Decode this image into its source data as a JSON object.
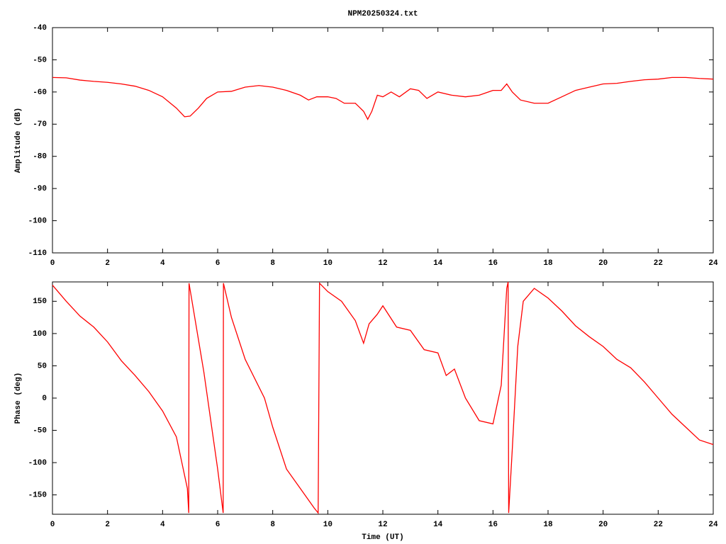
{
  "chart_data": [
    {
      "type": "line",
      "title": "NPM20250324.txt",
      "ylabel": "Amplitude (dB)",
      "color": "#ff0000",
      "x": [
        0,
        0.5,
        1,
        1.5,
        2,
        2.5,
        3,
        3.5,
        4,
        4.5,
        4.8,
        5,
        5.3,
        5.6,
        6,
        6.5,
        7,
        7.5,
        8,
        8.5,
        9,
        9.3,
        9.6,
        10,
        10.3,
        10.6,
        11,
        11.3,
        11.45,
        11.6,
        11.8,
        12,
        12.3,
        12.6,
        13,
        13.3,
        13.6,
        14,
        14.5,
        15,
        15.5,
        16,
        16.3,
        16.5,
        16.7,
        17,
        17.5,
        18,
        18.5,
        19,
        19.5,
        20,
        20.5,
        21,
        21.5,
        22,
        22.5,
        23,
        23.5,
        24
      ],
      "values": [
        -55.5,
        -55.6,
        -56.3,
        -56.7,
        -57,
        -57.5,
        -58.2,
        -59.5,
        -61.5,
        -65,
        -67.7,
        -67.5,
        -65,
        -62,
        -60,
        -59.8,
        -58.5,
        -58,
        -58.5,
        -59.5,
        -61,
        -62.5,
        -61.5,
        -61.5,
        -62,
        -63.5,
        -63.5,
        -66,
        -68.5,
        -66,
        -61,
        -61.5,
        -60,
        -61.5,
        -59,
        -59.5,
        -62,
        -60,
        -61,
        -61.5,
        -61,
        -59.5,
        -59.5,
        -57.5,
        -60,
        -62.5,
        -63.5,
        -63.5,
        -61.5,
        -59.5,
        -58.5,
        -57.5,
        -57.3,
        -56.7,
        -56.2,
        -56,
        -55.5,
        -55.5,
        -55.8,
        -56
      ],
      "xlim": [
        0,
        24
      ],
      "xticks": [
        0,
        2,
        4,
        6,
        8,
        10,
        12,
        14,
        16,
        18,
        20,
        22,
        24
      ],
      "ylim": [
        -110,
        -40
      ],
      "yticks": [
        -110,
        -100,
        -90,
        -80,
        -70,
        -60,
        -50,
        -40
      ]
    },
    {
      "type": "line",
      "ylabel": "Phase (deg)",
      "xlabel": "Time (UT)",
      "color": "#ff0000",
      "x": [
        0,
        0.5,
        1,
        1.5,
        2,
        2.5,
        3,
        3.5,
        4,
        4.5,
        4.9,
        4.95,
        4.96,
        5.5,
        6,
        6.2,
        6.21,
        6.5,
        7,
        7.7,
        8,
        8.5,
        9,
        9.5,
        9.65,
        9.7,
        10,
        10.5,
        11,
        11.3,
        11.5,
        11.8,
        12,
        12.5,
        13,
        13.5,
        14,
        14.3,
        14.6,
        15,
        15.5,
        16,
        16.3,
        16.5,
        16.55,
        16.57,
        16.7,
        16.9,
        17.1,
        17.5,
        18,
        18.5,
        19,
        19.5,
        20,
        20.5,
        21,
        21.5,
        22,
        22.5,
        23,
        23.5,
        24
      ],
      "values": [
        175,
        150,
        127,
        110,
        87,
        58,
        35,
        10,
        -20,
        -60,
        -140,
        -178,
        178,
        40,
        -110,
        -178,
        178,
        125,
        60,
        0,
        -45,
        -110,
        -140,
        -170,
        -178,
        178,
        165,
        150,
        120,
        85,
        115,
        130,
        143,
        110,
        105,
        75,
        70,
        35,
        45,
        0,
        -35,
        -40,
        20,
        170,
        180,
        -178,
        -80,
        80,
        150,
        170,
        155,
        135,
        112,
        95,
        80,
        60,
        47,
        25,
        0,
        -25,
        -45,
        -65,
        -72
      ],
      "xlim": [
        0,
        24
      ],
      "xticks": [
        0,
        2,
        4,
        6,
        8,
        10,
        12,
        14,
        16,
        18,
        20,
        22,
        24
      ],
      "ylim": [
        -180,
        180
      ],
      "yticks": [
        -150,
        -100,
        -50,
        0,
        50,
        100,
        150
      ]
    }
  ]
}
